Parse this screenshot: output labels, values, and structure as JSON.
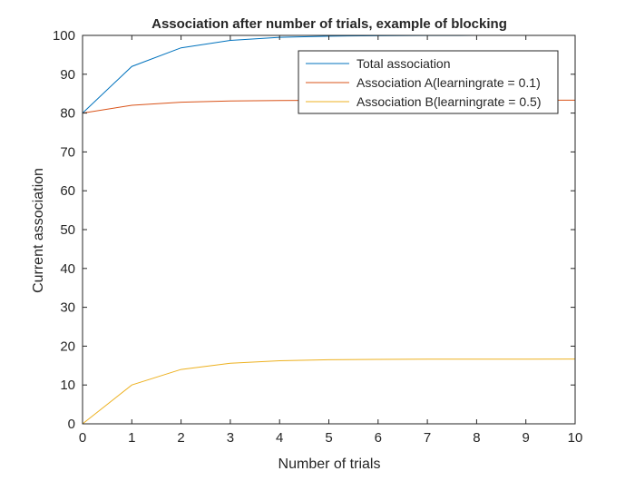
{
  "chart_data": {
    "type": "line",
    "title": "Association after number of trials, example of blocking",
    "xlabel": "Number of trials",
    "ylabel": "Current association",
    "xlim": [
      0,
      10
    ],
    "ylim": [
      0,
      100
    ],
    "xticks": [
      0,
      1,
      2,
      3,
      4,
      5,
      6,
      7,
      8,
      9,
      10
    ],
    "yticks": [
      0,
      10,
      20,
      30,
      40,
      50,
      60,
      70,
      80,
      90,
      100
    ],
    "grid": false,
    "legend_position": "top-right",
    "x": [
      0,
      1,
      2,
      3,
      4,
      5,
      6,
      7,
      8,
      9,
      10
    ],
    "series": [
      {
        "name": "Total association",
        "color": "#0072BD",
        "values": [
          80,
          92,
          96.8,
          98.72,
          99.49,
          99.8,
          99.92,
          99.97,
          99.99,
          99.99,
          100
        ]
      },
      {
        "name": "Association A(learningrate = 0.1)",
        "color": "#D95319",
        "values": [
          80,
          82,
          82.8,
          83.12,
          83.25,
          83.3,
          83.32,
          83.33,
          83.33,
          83.33,
          83.33
        ]
      },
      {
        "name": "Association B(learningrate = 0.5)",
        "color": "#EDB120",
        "values": [
          0,
          10,
          14,
          15.6,
          16.24,
          16.5,
          16.6,
          16.64,
          16.66,
          16.66,
          16.67
        ]
      }
    ]
  }
}
